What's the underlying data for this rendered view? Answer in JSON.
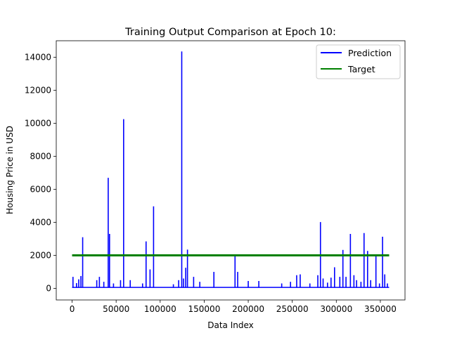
{
  "chart_data": {
    "type": "line",
    "title": "Training Output Comparison at Epoch 10:",
    "xlabel": "Data Index",
    "ylabel": "Housing Price in USD",
    "xlim": [
      -18000,
      378000
    ],
    "ylim": [
      -700,
      15000
    ],
    "xticks": [
      0,
      50000,
      100000,
      150000,
      200000,
      250000,
      300000,
      350000
    ],
    "yticks": [
      0,
      2000,
      4000,
      6000,
      8000,
      10000,
      12000,
      14000
    ],
    "grid": false,
    "legend_position": "top-right",
    "series": [
      {
        "name": "Prediction",
        "color": "#0000ff",
        "baseline_points": [
          [
            0,
            60
          ],
          [
            360000,
            60
          ]
        ],
        "spikes": [
          [
            1000,
            700
          ],
          [
            5000,
            320
          ],
          [
            7500,
            550
          ],
          [
            10000,
            750
          ],
          [
            12000,
            3100
          ],
          [
            28000,
            500
          ],
          [
            31000,
            700
          ],
          [
            36000,
            400
          ],
          [
            41000,
            6700
          ],
          [
            42500,
            3300
          ],
          [
            47000,
            300
          ],
          [
            55000,
            500
          ],
          [
            58500,
            10250
          ],
          [
            66000,
            500
          ],
          [
            80000,
            300
          ],
          [
            84000,
            2850
          ],
          [
            88500,
            1150
          ],
          [
            92500,
            4970
          ],
          [
            115000,
            250
          ],
          [
            121000,
            500
          ],
          [
            124500,
            14350
          ],
          [
            126500,
            600
          ],
          [
            129000,
            1250
          ],
          [
            131000,
            2350
          ],
          [
            138000,
            700
          ],
          [
            145000,
            400
          ],
          [
            161000,
            1000
          ],
          [
            185000,
            1950
          ],
          [
            188000,
            1000
          ],
          [
            200000,
            450
          ],
          [
            212000,
            450
          ],
          [
            238000,
            300
          ],
          [
            248000,
            400
          ],
          [
            255000,
            800
          ],
          [
            259000,
            850
          ],
          [
            270000,
            300
          ],
          [
            279000,
            800
          ],
          [
            282000,
            4020
          ],
          [
            285000,
            600
          ],
          [
            290000,
            350
          ],
          [
            294000,
            650
          ],
          [
            298000,
            1280
          ],
          [
            304000,
            700
          ],
          [
            307500,
            2330
          ],
          [
            311000,
            700
          ],
          [
            316000,
            3300
          ],
          [
            320000,
            800
          ],
          [
            323000,
            500
          ],
          [
            328000,
            400
          ],
          [
            331500,
            3350
          ],
          [
            335500,
            2270
          ],
          [
            339000,
            500
          ],
          [
            345000,
            2000
          ],
          [
            349000,
            300
          ],
          [
            352500,
            3130
          ],
          [
            355000,
            850
          ],
          [
            358000,
            300
          ]
        ]
      },
      {
        "name": "Target",
        "color": "#008000",
        "points": [
          [
            0,
            2000
          ],
          [
            360000,
            2000
          ]
        ]
      }
    ]
  }
}
